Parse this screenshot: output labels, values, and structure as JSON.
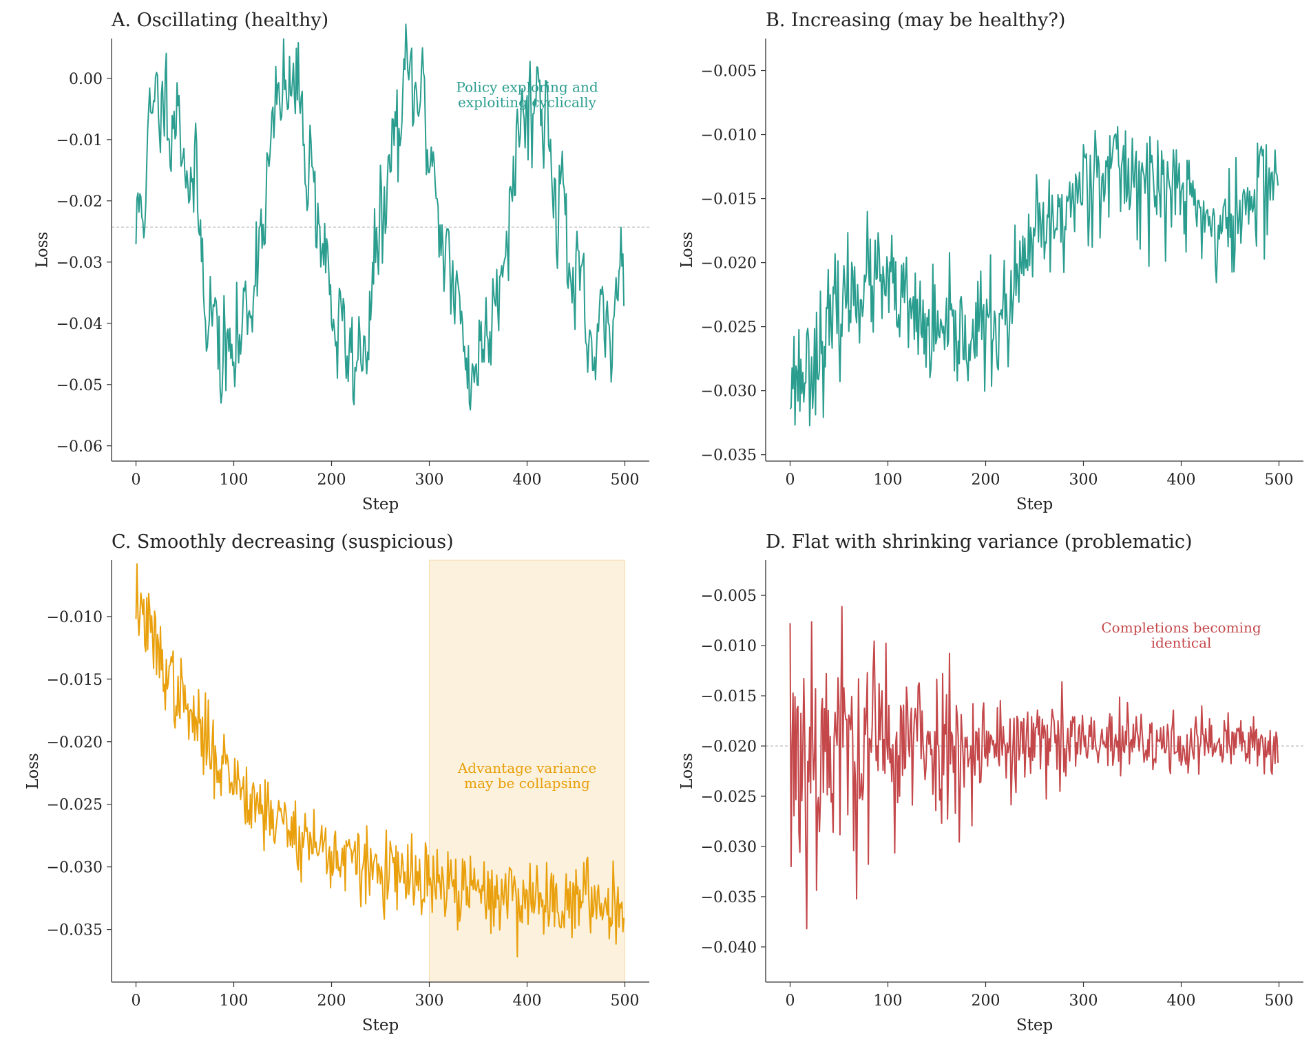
{
  "colors": {
    "teal": "#2a9d8f",
    "orange": "#e9a00c",
    "red": "#c4474a",
    "shade": "#fbf1dc",
    "refline": "#bbbbbb",
    "axis": "#333333"
  },
  "chart_data": [
    {
      "id": "A",
      "type": "line",
      "title": "A. Oscillating (healthy)",
      "xlabel": "Step",
      "ylabel": "Loss",
      "xlim": [
        -25,
        525
      ],
      "ylim": [
        -0.0625,
        0.0065
      ],
      "xticks": [
        0,
        100,
        200,
        300,
        400,
        500
      ],
      "xtick_labels": [
        "0",
        "100",
        "200",
        "300",
        "400",
        "500"
      ],
      "yticks": [
        0.0,
        -0.01,
        -0.02,
        -0.03,
        -0.04,
        -0.05,
        -0.06
      ],
      "ytick_labels": [
        "0.00",
        "−0.01",
        "−0.02",
        "−0.03",
        "−0.04",
        "−0.05",
        "−0.06"
      ],
      "color": "teal",
      "n_points": 500,
      "hline": -0.0243,
      "annotation": {
        "lines": [
          "Policy exploring and",
          "exploiting cyclically"
        ],
        "x": 400,
        "y": -0.0022
      },
      "series": {
        "form": "oscillating",
        "mean": -0.0243,
        "amplitude": 0.022,
        "period": 125,
        "phase": -0.07,
        "noise": 0.0045,
        "seed": 11
      }
    },
    {
      "id": "B",
      "type": "line",
      "title": "B. Increasing (may be healthy?)",
      "xlabel": "Step",
      "ylabel": "Loss",
      "xlim": [
        -25,
        525
      ],
      "ylim": [
        -0.0355,
        -0.0025
      ],
      "xticks": [
        0,
        100,
        200,
        300,
        400,
        500
      ],
      "xtick_labels": [
        "0",
        "100",
        "200",
        "300",
        "400",
        "500"
      ],
      "yticks": [
        -0.005,
        -0.01,
        -0.015,
        -0.02,
        -0.025,
        -0.03,
        -0.035
      ],
      "ytick_labels": [
        "−0.005",
        "−0.010",
        "−0.015",
        "−0.020",
        "−0.025",
        "−0.030",
        "−0.035"
      ],
      "color": "teal",
      "n_points": 500,
      "series": {
        "form": "piecewise",
        "anchors": [
          [
            0,
            -0.029
          ],
          [
            80,
            -0.0215
          ],
          [
            160,
            -0.026
          ],
          [
            210,
            -0.025
          ],
          [
            260,
            -0.0175
          ],
          [
            320,
            -0.0125
          ],
          [
            400,
            -0.0145
          ],
          [
            440,
            -0.0175
          ],
          [
            500,
            -0.013
          ]
        ],
        "noise": 0.0022,
        "seed": 23
      }
    },
    {
      "id": "C",
      "type": "line",
      "title": "C. Smoothly decreasing (suspicious)",
      "xlabel": "Step",
      "ylabel": "Loss",
      "xlim": [
        -25,
        525
      ],
      "ylim": [
        -0.0392,
        -0.0055
      ],
      "xticks": [
        0,
        100,
        200,
        300,
        400,
        500
      ],
      "xtick_labels": [
        "0",
        "100",
        "200",
        "300",
        "400",
        "500"
      ],
      "yticks": [
        -0.01,
        -0.015,
        -0.02,
        -0.025,
        -0.03,
        -0.035
      ],
      "ytick_labels": [
        "−0.010",
        "−0.015",
        "−0.020",
        "−0.025",
        "−0.030",
        "−0.035"
      ],
      "color": "orange",
      "n_points": 500,
      "shaded_region": {
        "x0": 300,
        "x1": 500
      },
      "annotation": {
        "lines": [
          "Advantage variance",
          "may be collapsing"
        ],
        "x": 400,
        "y": -0.0225
      },
      "series": {
        "form": "exp_decay",
        "start": -0.0085,
        "end": -0.0332,
        "tau": 115,
        "noise": 0.00155,
        "seed": 37
      }
    },
    {
      "id": "D",
      "type": "line",
      "title": "D. Flat with shrinking variance (problematic)",
      "xlabel": "Step",
      "ylabel": "Loss",
      "xlim": [
        -25,
        525
      ],
      "ylim": [
        -0.0435,
        -0.0015
      ],
      "xticks": [
        0,
        100,
        200,
        300,
        400,
        500
      ],
      "xtick_labels": [
        "0",
        "100",
        "200",
        "300",
        "400",
        "500"
      ],
      "yticks": [
        -0.005,
        -0.01,
        -0.015,
        -0.02,
        -0.025,
        -0.03,
        -0.035,
        -0.04
      ],
      "ytick_labels": [
        "−0.005",
        "−0.010",
        "−0.015",
        "−0.020",
        "−0.025",
        "−0.030",
        "−0.035",
        "−0.040"
      ],
      "color": "red",
      "n_points": 500,
      "hline": -0.02,
      "annotation": {
        "lines": [
          "Completions becoming",
          "identical"
        ],
        "x": 400,
        "y": -0.0087
      },
      "series": {
        "form": "shrinking_noise",
        "mean": -0.0198,
        "noise_start": 0.0085,
        "noise_end": 0.0011,
        "decay": 150,
        "seed": 53
      }
    }
  ]
}
